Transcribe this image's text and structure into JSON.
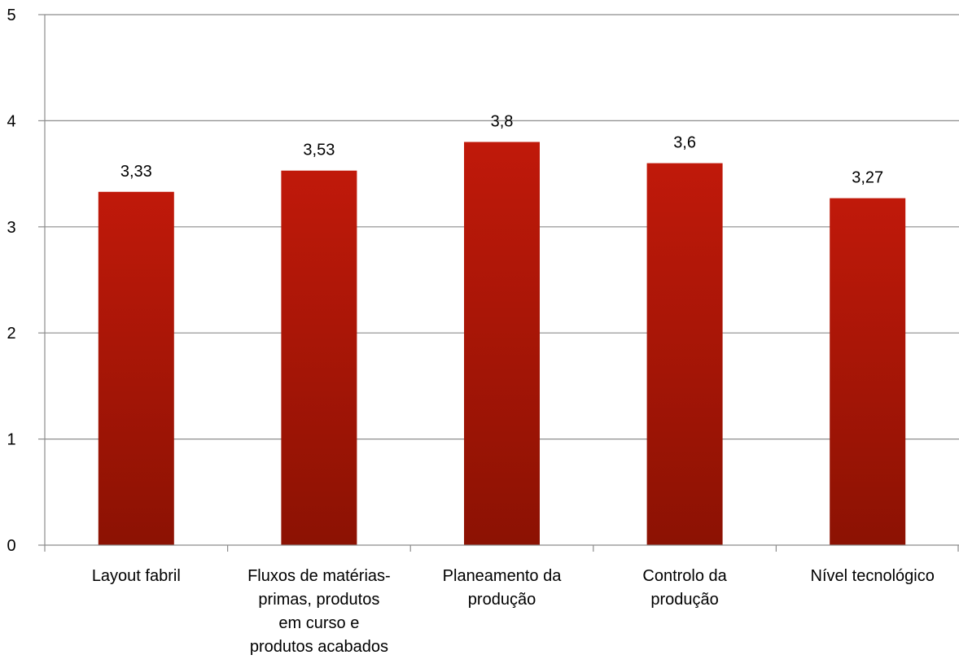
{
  "chart_data": {
    "type": "bar",
    "categories": [
      [
        "Layout fabril"
      ],
      [
        "Fluxos de matérias-",
        "primas, produtos",
        "em curso e",
        "produtos acabados"
      ],
      [
        "Planeamento da",
        "produção"
      ],
      [
        "Controlo da",
        "produção"
      ],
      [
        "Nível tecnológico"
      ]
    ],
    "values": [
      3.33,
      3.53,
      3.8,
      3.6,
      3.27
    ],
    "data_labels": [
      "3,33",
      "3,53",
      "3,8",
      "3,6",
      "3,27"
    ],
    "ylim": [
      0,
      5
    ],
    "yticks": [
      0,
      1,
      2,
      3,
      4,
      5
    ],
    "ytick_labels": [
      "0",
      "1",
      "2",
      "3",
      "4",
      "5"
    ],
    "grid": true,
    "legend": "none",
    "colors": {
      "bar_top": "#C0190A",
      "bar_bottom": "#8C1203",
      "grid": "#8C8C8C",
      "axis": "#8C8C8C"
    }
  }
}
